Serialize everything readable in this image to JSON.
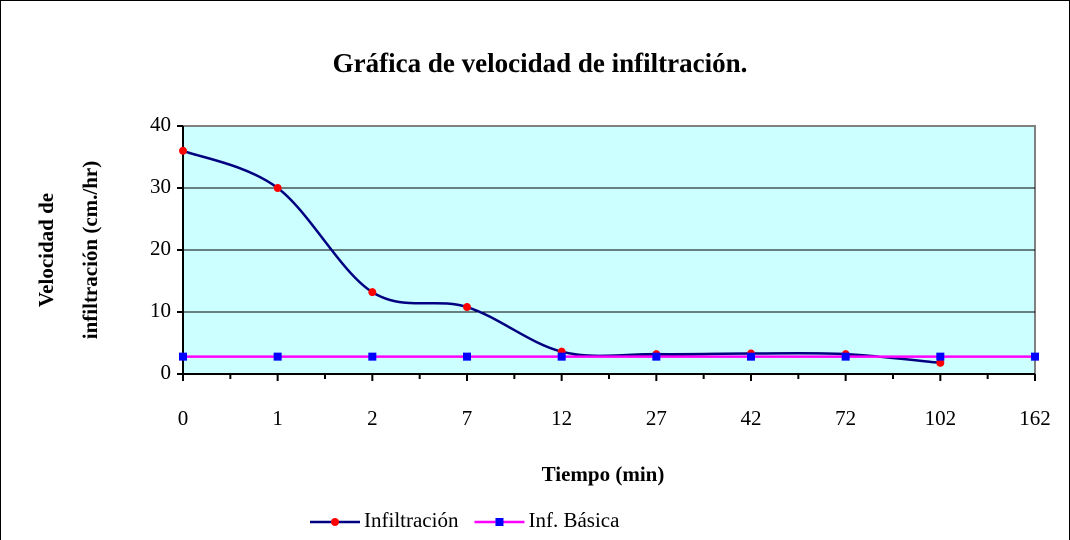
{
  "chart_data": {
    "type": "line",
    "title": "Gráfica de velocidad de infiltración.",
    "xlabel": "Tiempo (min)",
    "ylabel": [
      "Velocidad de",
      "infiltración (cm./hr)"
    ],
    "categories": [
      "0",
      "1",
      "2",
      "7",
      "12",
      "27",
      "42",
      "72",
      "102",
      "162"
    ],
    "series": [
      {
        "name": "Infiltración",
        "color": "#000080",
        "marker_color": "#ff0000",
        "marker": "circle",
        "smooth": true,
        "values": [
          36,
          30,
          13.2,
          10.8,
          3.6,
          3.2,
          3.3,
          3.2,
          1.8,
          null
        ]
      },
      {
        "name": "Inf. Básica",
        "color": "#ff00ff",
        "marker_color": "#0000ff",
        "marker": "square",
        "smooth": false,
        "values": [
          2.8,
          2.8,
          2.8,
          2.8,
          2.8,
          2.8,
          2.8,
          2.8,
          2.8,
          2.8
        ]
      }
    ],
    "ylim": [
      0,
      40
    ],
    "yticks": [
      0,
      10,
      20,
      30,
      40
    ],
    "grid": true,
    "plot_background": "#ccffff",
    "legend": "bottom"
  }
}
